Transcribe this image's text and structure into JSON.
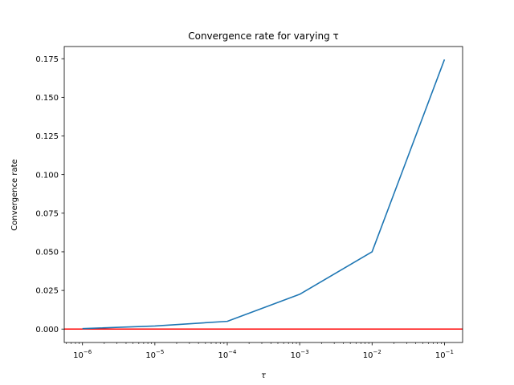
{
  "chart_data": {
    "type": "line",
    "title": "Convergence rate for varying τ",
    "xlabel": "τ",
    "ylabel": "Convergence rate",
    "xscale": "log",
    "xlim": [
      5.6e-07,
      0.178
    ],
    "ylim": [
      -0.0087,
      0.1829
    ],
    "grid": false,
    "x": [
      1e-06,
      1e-05,
      0.0001,
      0.001,
      0.01,
      0.1
    ],
    "x_tick_labels": [
      {
        "value": 1e-06,
        "base": "10",
        "exp": "−6"
      },
      {
        "value": 1e-05,
        "base": "10",
        "exp": "−5"
      },
      {
        "value": 0.0001,
        "base": "10",
        "exp": "−4"
      },
      {
        "value": 0.001,
        "base": "10",
        "exp": "−3"
      },
      {
        "value": 0.01,
        "base": "10",
        "exp": "−2"
      },
      {
        "value": 0.1,
        "base": "10",
        "exp": "−1"
      }
    ],
    "y_ticks": [
      0.0,
      0.025,
      0.05,
      0.075,
      0.1,
      0.125,
      0.15,
      0.175
    ],
    "y_tick_labels": [
      "0.000",
      "0.025",
      "0.050",
      "0.075",
      "0.100",
      "0.125",
      "0.150",
      "0.175"
    ],
    "series": [
      {
        "color": "#1f77b4",
        "values": [
          0.0003,
          0.002,
          0.005,
          0.0225,
          0.05,
          0.1745
        ]
      }
    ],
    "hlines": [
      {
        "y": 0.0,
        "color": "#ff0000"
      }
    ]
  }
}
